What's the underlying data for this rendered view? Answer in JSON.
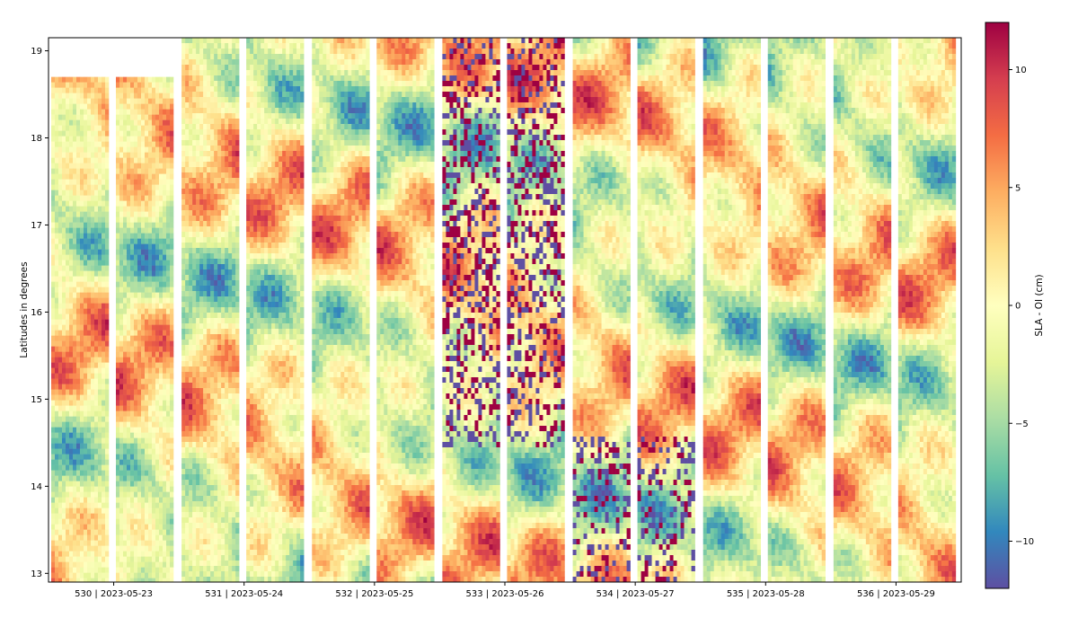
{
  "chart_data": {
    "type": "heatmap",
    "title": "",
    "ylabel": "Latitudes in degrees",
    "ylim": [
      12.9,
      19.15
    ],
    "yticks": [
      13,
      14,
      15,
      16,
      17,
      18,
      19
    ],
    "xlabels": [
      "530 | 2023-05-23",
      "531 | 2023-05-24",
      "532 | 2023-05-25",
      "533 | 2023-05-26",
      "534 | 2023-05-27",
      "535 | 2023-05-28",
      "536 | 2023-05-29"
    ],
    "colorbar": {
      "label": "SLA - OI (cm)",
      "range": [
        -12,
        12
      ],
      "ticks": [
        -10,
        -5,
        0,
        5,
        10
      ],
      "tick_labels": [
        "−10",
        "−5",
        "0",
        "5",
        "10"
      ],
      "colormap": "Spectral_r",
      "colors": [
        "#5e4fa2",
        "#3288bd",
        "#66c2a5",
        "#abdda4",
        "#e6f598",
        "#ffffbf",
        "#fee08b",
        "#fdae61",
        "#f46d43",
        "#d53e4f",
        "#9e0142"
      ]
    },
    "passes": [
      {
        "cycle": 530,
        "date": "2023-05-23",
        "lat_range": [
          12.9,
          18.7
        ]
      },
      {
        "cycle": 531,
        "date": "2023-05-24",
        "lat_range": [
          12.9,
          19.15
        ]
      },
      {
        "cycle": 532,
        "date": "2023-05-25",
        "lat_range": [
          12.9,
          19.15
        ]
      },
      {
        "cycle": 533,
        "date": "2023-05-26",
        "lat_range": [
          12.9,
          19.15
        ]
      },
      {
        "cycle": 534,
        "date": "2023-05-27",
        "lat_range": [
          12.9,
          19.15
        ]
      },
      {
        "cycle": 535,
        "date": "2023-05-28",
        "lat_range": [
          12.9,
          19.15
        ]
      },
      {
        "cycle": 536,
        "date": "2023-05-29",
        "lat_range": [
          12.9,
          19.15
        ]
      }
    ]
  }
}
